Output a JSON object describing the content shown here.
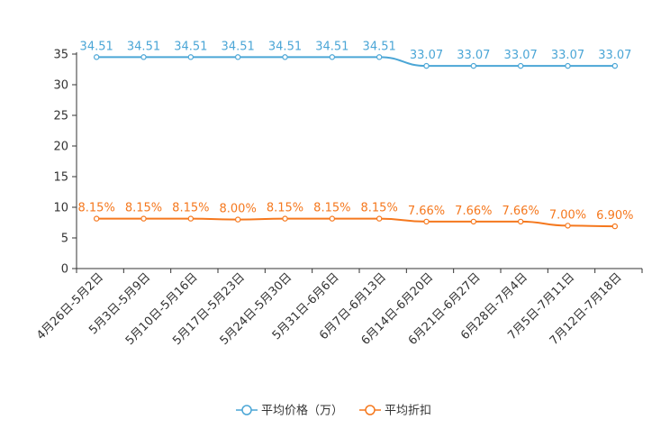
{
  "chart_data": {
    "type": "line",
    "title": "",
    "xlabel": "",
    "ylabel": "",
    "ylim": [
      0,
      35
    ],
    "yticks": [
      0,
      5,
      10,
      15,
      20,
      25,
      30,
      35
    ],
    "grid": false,
    "legend": "bottom-center",
    "categories": [
      "4月26日-5月2日",
      "5月3日-5月9日",
      "5月10日-5月16日",
      "5月17日-5月23日",
      "5月24日-5月30日",
      "5月31日-6月6日",
      "6月7日-6月13日",
      "6月14日-6月20日",
      "6月21日-6月27日",
      "6月28日-7月4日",
      "7月5日-7月11日",
      "7月12日-7月18日"
    ],
    "series": [
      {
        "name": "平均价格（万）",
        "color": "#4ba6d6",
        "values": [
          34.51,
          34.51,
          34.51,
          34.51,
          34.51,
          34.51,
          34.51,
          33.07,
          33.07,
          33.07,
          33.07,
          33.07
        ],
        "labels": [
          "34.51",
          "34.51",
          "34.51",
          "34.51",
          "34.51",
          "34.51",
          "34.51",
          "33.07",
          "33.07",
          "33.07",
          "33.07",
          "33.07"
        ]
      },
      {
        "name": "平均折扣",
        "color": "#f5781e",
        "values": [
          8.15,
          8.15,
          8.15,
          8.0,
          8.15,
          8.15,
          8.15,
          7.66,
          7.66,
          7.66,
          7.0,
          6.9
        ],
        "labels": [
          "8.15%",
          "8.15%",
          "8.15%",
          "8.00%",
          "8.15%",
          "8.15%",
          "8.15%",
          "7.66%",
          "7.66%",
          "7.66%",
          "7.00%",
          "6.90%"
        ]
      }
    ]
  }
}
